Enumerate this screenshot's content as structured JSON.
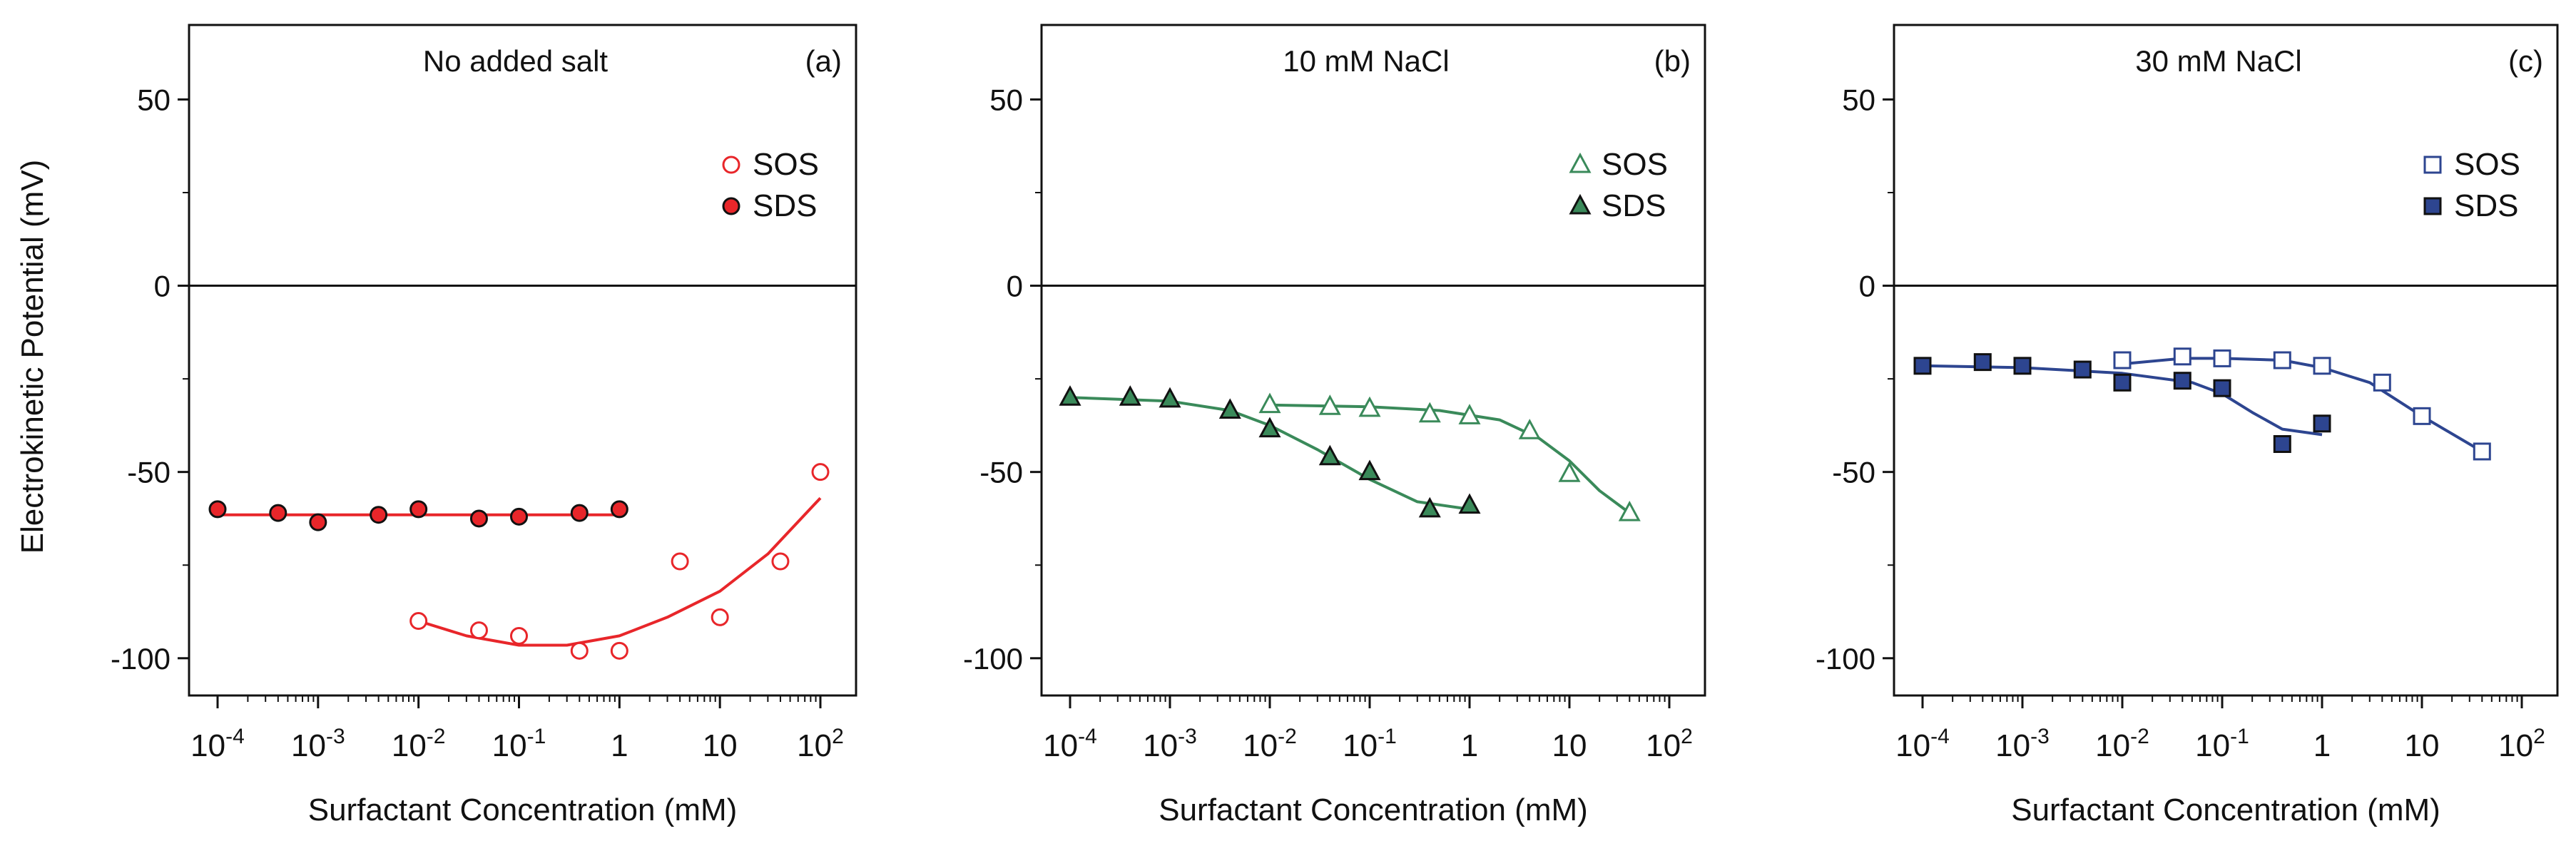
{
  "ylabel": "Electrokinetic Potential (mV)",
  "chart_data": [
    {
      "type": "scatter",
      "panel_label": "(a)",
      "title": "No added salt",
      "xlabel": "Surfactant Concentration (mM)",
      "xscale": "log",
      "xlim": [
        -4,
        2
      ],
      "ylim": [
        -110,
        70
      ],
      "xtick_labels": [
        {
          "base": "10",
          "exp": "-4"
        },
        {
          "base": "10",
          "exp": "-3"
        },
        {
          "base": "10",
          "exp": "-2"
        },
        {
          "base": "10",
          "exp": "-1"
        },
        {
          "base": "1",
          "exp": ""
        },
        {
          "base": "10",
          "exp": ""
        },
        {
          "base": "10",
          "exp": "2"
        }
      ],
      "ytick_labels": [
        "50",
        "0",
        "-50",
        "-100"
      ],
      "color": "#e8262a",
      "legend_position": "upper-right",
      "series": [
        {
          "name": "SOS",
          "marker": "circle",
          "filled": false,
          "x": [
            0.01,
            0.04,
            0.1,
            0.4,
            1,
            4,
            10,
            40,
            100
          ],
          "y": [
            -90,
            -92.5,
            -94,
            -98,
            -98,
            -74,
            -89,
            -74,
            -50
          ],
          "fit_x": [
            0.01,
            0.03,
            0.1,
            0.3,
            1,
            3,
            10,
            30,
            100
          ],
          "fit_y": [
            -90,
            -94,
            -96.5,
            -96.5,
            -94,
            -89,
            -82,
            -72,
            -57
          ]
        },
        {
          "name": "SDS",
          "marker": "circle",
          "filled": true,
          "x": [
            0.0001,
            0.0004,
            0.001,
            0.004,
            0.01,
            0.04,
            0.1,
            0.4,
            1
          ],
          "y": [
            -60,
            -61,
            -63.5,
            -61.5,
            -60,
            -62.5,
            -62,
            -61,
            -60
          ],
          "fit_x": [
            0.0001,
            1
          ],
          "fit_y": [
            -61.5,
            -61.5
          ]
        }
      ]
    },
    {
      "type": "scatter",
      "panel_label": "(b)",
      "title": "10 mM NaCl",
      "xlabel": "Surfactant Concentration (mM)",
      "xscale": "log",
      "xlim": [
        -4,
        2
      ],
      "ylim": [
        -110,
        70
      ],
      "xtick_labels": [
        {
          "base": "10",
          "exp": "-4"
        },
        {
          "base": "10",
          "exp": "-3"
        },
        {
          "base": "10",
          "exp": "-2"
        },
        {
          "base": "10",
          "exp": "-1"
        },
        {
          "base": "1",
          "exp": ""
        },
        {
          "base": "10",
          "exp": ""
        },
        {
          "base": "10",
          "exp": "2"
        }
      ],
      "ytick_labels": [
        "50",
        "0",
        "-50",
        "-100"
      ],
      "color": "#3a8a5a",
      "legend_position": "upper-right",
      "series": [
        {
          "name": "SOS",
          "marker": "triangle",
          "filled": false,
          "x": [
            0.01,
            0.04,
            0.1,
            0.4,
            1,
            4,
            10,
            40
          ],
          "y": [
            -32,
            -32.5,
            -33,
            -34.5,
            -35,
            -39,
            -50.5,
            -61
          ],
          "fit_x": [
            0.01,
            0.1,
            0.5,
            2,
            5,
            10,
            20,
            40
          ],
          "fit_y": [
            -32,
            -32.5,
            -33.5,
            -36,
            -41,
            -47,
            -55,
            -61
          ]
        },
        {
          "name": "SDS",
          "marker": "triangle",
          "filled": true,
          "x": [
            0.0001,
            0.0004,
            0.001,
            0.004,
            0.01,
            0.04,
            0.1,
            0.4,
            1
          ],
          "y": [
            -30,
            -30,
            -30.5,
            -33.5,
            -38.5,
            -46,
            -50,
            -60,
            -59
          ],
          "fit_x": [
            0.0001,
            0.001,
            0.004,
            0.01,
            0.03,
            0.1,
            0.3,
            1
          ],
          "fit_y": [
            -30,
            -31,
            -33.5,
            -37.5,
            -44,
            -52,
            -58,
            -60
          ]
        }
      ]
    },
    {
      "type": "scatter",
      "panel_label": "(c)",
      "title": "30 mM NaCl",
      "xlabel": "Surfactant Concentration (mM)",
      "xscale": "log",
      "xlim": [
        -4,
        2
      ],
      "ylim": [
        -110,
        70
      ],
      "xtick_labels": [
        {
          "base": "10",
          "exp": "-4"
        },
        {
          "base": "10",
          "exp": "-3"
        },
        {
          "base": "10",
          "exp": "-2"
        },
        {
          "base": "10",
          "exp": "-1"
        },
        {
          "base": "1",
          "exp": ""
        },
        {
          "base": "10",
          "exp": ""
        },
        {
          "base": "10",
          "exp": "2"
        }
      ],
      "ytick_labels": [
        "50",
        "0",
        "-50",
        "-100"
      ],
      "color": "#2d4590",
      "legend_position": "upper-right",
      "series": [
        {
          "name": "SOS",
          "marker": "square",
          "filled": false,
          "x": [
            0.01,
            0.04,
            0.1,
            0.4,
            1,
            4,
            10,
            40
          ],
          "y": [
            -20,
            -19,
            -19.5,
            -20,
            -21.5,
            -26,
            -35,
            -44.5
          ],
          "fit_x": [
            0.01,
            0.04,
            0.1,
            0.4,
            1,
            3,
            10,
            40
          ],
          "fit_y": [
            -21,
            -19.5,
            -19.5,
            -20,
            -22,
            -26,
            -35,
            -44.5
          ]
        },
        {
          "name": "SDS",
          "marker": "square",
          "filled": true,
          "x": [
            0.0001,
            0.0004,
            0.001,
            0.004,
            0.01,
            0.04,
            0.1,
            0.4,
            1
          ],
          "y": [
            -21.5,
            -20.5,
            -21.5,
            -22.5,
            -26,
            -25.5,
            -27.5,
            -42.5,
            -37
          ],
          "fit_x": [
            0.0001,
            0.001,
            0.01,
            0.05,
            0.1,
            0.2,
            0.4,
            1
          ],
          "fit_y": [
            -21.5,
            -22,
            -23.5,
            -26,
            -29,
            -34,
            -38.5,
            -40
          ]
        }
      ]
    }
  ]
}
